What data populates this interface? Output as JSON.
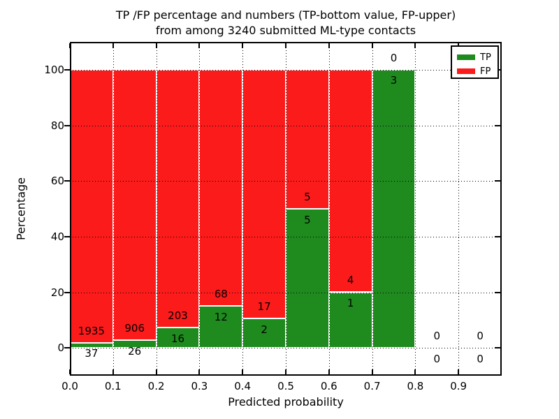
{
  "chart_data": {
    "type": "bar",
    "stacked": true,
    "orientation": "vertical",
    "title_line1": "TP /FP percentage and numbers (TP-bottom value, FP-upper)",
    "title_line2": "from among 3240 submitted ML-type contacts",
    "xlabel": "Predicted probability",
    "ylabel": "Percentage",
    "total_contacts": 3240,
    "xlim": [
      0.0,
      1.0
    ],
    "ylim": [
      -10,
      110
    ],
    "x_tick_values": [
      0.0,
      0.1,
      0.2,
      0.3,
      0.4,
      0.5,
      0.6,
      0.7,
      0.8,
      0.9
    ],
    "x_tick_labels": [
      "0.0",
      "0.1",
      "0.2",
      "0.3",
      "0.4",
      "0.5",
      "0.6",
      "0.7",
      "0.8",
      "0.9"
    ],
    "y_tick_values": [
      0,
      20,
      40,
      60,
      80,
      100
    ],
    "y_tick_labels": [
      "0",
      "20",
      "40",
      "60",
      "80",
      "100"
    ],
    "grid": {
      "visible": true,
      "style": "dotted",
      "color": "#000000"
    },
    "bar_edge_color": "#ffffff",
    "series": [
      {
        "name": "TP",
        "color": "#1f8b1f",
        "position": "bottom"
      },
      {
        "name": "FP",
        "color": "#fb1b1b",
        "position": "upper"
      }
    ],
    "bins": [
      {
        "x_start": 0.0,
        "x_end": 0.1,
        "tp": 37,
        "fp": 1935,
        "tp_pct": 1.9,
        "fp_pct": 98.1
      },
      {
        "x_start": 0.1,
        "x_end": 0.2,
        "tp": 26,
        "fp": 906,
        "tp_pct": 2.8,
        "fp_pct": 97.2
      },
      {
        "x_start": 0.2,
        "x_end": 0.3,
        "tp": 16,
        "fp": 203,
        "tp_pct": 7.3,
        "fp_pct": 92.7
      },
      {
        "x_start": 0.3,
        "x_end": 0.4,
        "tp": 12,
        "fp": 68,
        "tp_pct": 15.0,
        "fp_pct": 85.0
      },
      {
        "x_start": 0.4,
        "x_end": 0.5,
        "tp": 2,
        "fp": 17,
        "tp_pct": 10.5,
        "fp_pct": 89.5
      },
      {
        "x_start": 0.5,
        "x_end": 0.6,
        "tp": 5,
        "fp": 5,
        "tp_pct": 50.0,
        "fp_pct": 50.0
      },
      {
        "x_start": 0.6,
        "x_end": 0.7,
        "tp": 1,
        "fp": 4,
        "tp_pct": 20.0,
        "fp_pct": 80.0
      },
      {
        "x_start": 0.7,
        "x_end": 0.8,
        "tp": 3,
        "fp": 0,
        "tp_pct": 100.0,
        "fp_pct": 0.0
      },
      {
        "x_start": 0.8,
        "x_end": 0.9,
        "tp": 0,
        "fp": 0,
        "tp_pct": 0.0,
        "fp_pct": 0.0
      },
      {
        "x_start": 0.9,
        "x_end": 1.0,
        "tp": 0,
        "fp": 0,
        "tp_pct": 0.0,
        "fp_pct": 0.0
      }
    ],
    "legend": {
      "position": "upper right",
      "entries": [
        {
          "label": "TP",
          "color": "#1f8b1f"
        },
        {
          "label": "FP",
          "color": "#fb1b1b"
        }
      ]
    }
  }
}
